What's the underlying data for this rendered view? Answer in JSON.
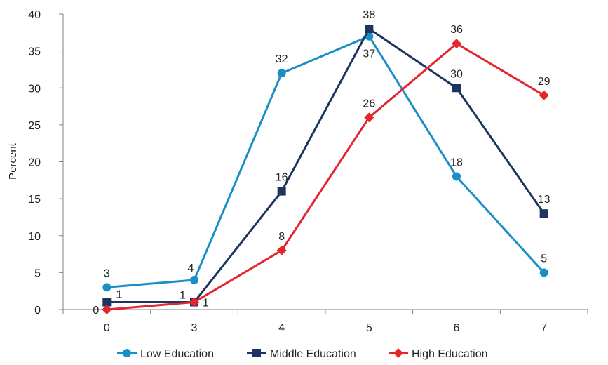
{
  "chart_data": {
    "type": "line",
    "title": "",
    "xlabel": "",
    "ylabel": "Percent",
    "categories": [
      "0",
      "3",
      "4",
      "5",
      "6",
      "7"
    ],
    "ylim": [
      0,
      40
    ],
    "yticks": [
      0,
      5,
      10,
      15,
      20,
      25,
      30,
      35,
      40
    ],
    "grid": false,
    "legend_position": "bottom",
    "series": [
      {
        "name": "Low Education",
        "color": "#1a8fc7",
        "marker": "circle",
        "values": [
          3,
          4,
          32,
          37,
          18,
          5
        ]
      },
      {
        "name": "Middle Education",
        "color": "#1b3460",
        "marker": "square",
        "values": [
          1,
          1,
          16,
          38,
          30,
          13
        ]
      },
      {
        "name": "High Education",
        "color": "#e3262d",
        "marker": "diamond",
        "values": [
          0,
          1,
          8,
          26,
          36,
          29
        ]
      }
    ]
  }
}
